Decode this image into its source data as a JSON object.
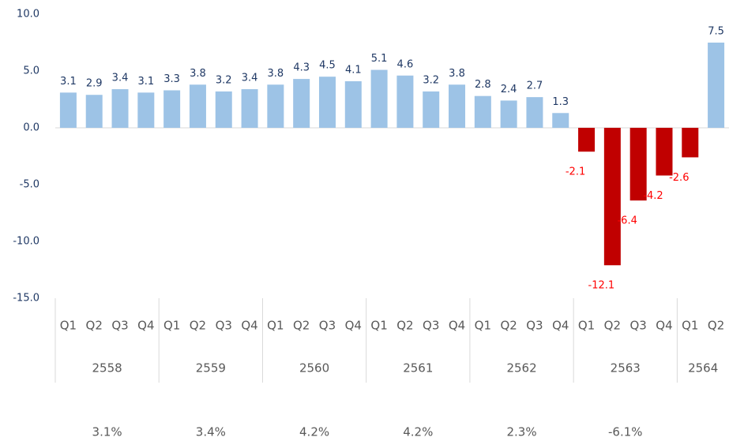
{
  "chart_data": {
    "type": "bar",
    "groups": [
      {
        "name": "2558",
        "categories": [
          "Q1",
          "Q2",
          "Q3",
          "Q4"
        ],
        "values": [
          3.1,
          2.9,
          3.4,
          3.1
        ],
        "annual": "3.1%"
      },
      {
        "name": "2559",
        "categories": [
          "Q1",
          "Q2",
          "Q3",
          "Q4"
        ],
        "values": [
          3.3,
          3.8,
          3.2,
          3.4
        ],
        "annual": "3.4%"
      },
      {
        "name": "2560",
        "categories": [
          "Q1",
          "Q2",
          "Q3",
          "Q4"
        ],
        "values": [
          3.8,
          4.3,
          4.5,
          4.1
        ],
        "annual": "4.2%"
      },
      {
        "name": "2561",
        "categories": [
          "Q1",
          "Q2",
          "Q3",
          "Q4"
        ],
        "values": [
          5.1,
          4.6,
          3.2,
          3.8
        ],
        "annual": "4.2%"
      },
      {
        "name": "2562",
        "categories": [
          "Q1",
          "Q2",
          "Q3",
          "Q4"
        ],
        "values": [
          2.8,
          2.4,
          2.7,
          1.3
        ],
        "annual": "2.3%"
      },
      {
        "name": "2563",
        "categories": [
          "Q1",
          "Q2",
          "Q3",
          "Q4"
        ],
        "values": [
          -2.1,
          -12.1,
          -6.4,
          -4.2
        ],
        "annual": "-6.1%"
      },
      {
        "name": "2564",
        "categories": [
          "Q1",
          "Q2"
        ],
        "values": [
          -2.6,
          7.5
        ]
      }
    ],
    "color": "#9dc3e6",
    "negative_color": "#c00000",
    "ylim": [
      -15,
      10
    ],
    "yticks": [
      {
        "value": 10,
        "label": "10.0"
      },
      {
        "value": 5,
        "label": "5.0"
      },
      {
        "value": 0,
        "label": "0.0"
      },
      {
        "value": -5,
        "label": "-5.0"
      },
      {
        "value": -10,
        "label": "-10.0"
      },
      {
        "value": -15,
        "label": "-15.0"
      }
    ]
  }
}
